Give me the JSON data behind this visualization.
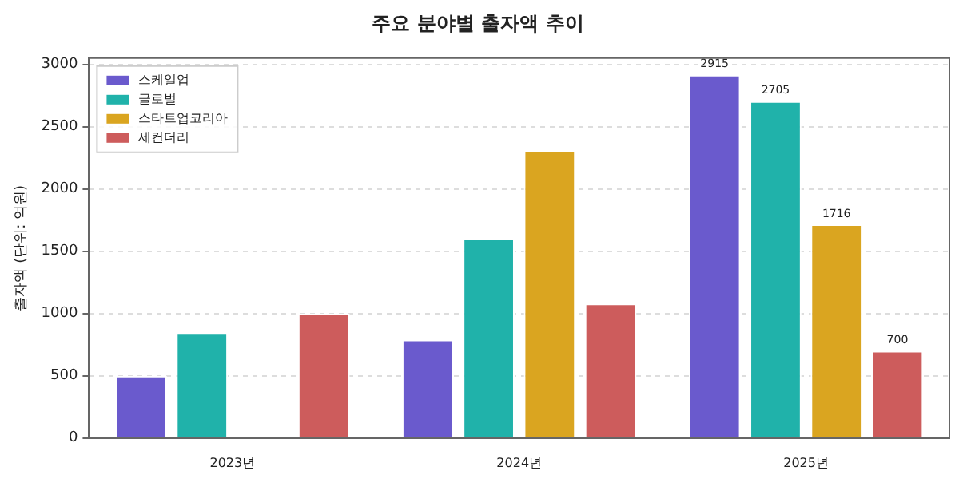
{
  "chart_data": {
    "type": "bar",
    "title": "주요 분야별 출자액 추이",
    "ylabel": "출자액 (단위: 억원)",
    "categories": [
      "2023년",
      "2024년",
      "2025년"
    ],
    "series": [
      {
        "name": "스케일업",
        "color": "#6a5acd",
        "values": [
          500,
          790,
          2915
        ],
        "value_labels": [
          null,
          null,
          "2915"
        ]
      },
      {
        "name": "글로벌",
        "color": "#20b2aa",
        "values": [
          850,
          1600,
          2705
        ],
        "value_labels": [
          null,
          null,
          "2705"
        ]
      },
      {
        "name": "스타트업코리아",
        "color": "#daa520",
        "values": [
          null,
          2310,
          1716
        ],
        "value_labels": [
          null,
          null,
          "1716"
        ]
      },
      {
        "name": "세컨더리",
        "color": "#cd5c5c",
        "values": [
          1000,
          1080,
          700
        ],
        "value_labels": [
          null,
          null,
          "700"
        ]
      }
    ],
    "ylim": [
      0,
      3050
    ],
    "yticks": [
      0,
      500,
      1000,
      1500,
      2000,
      2500,
      3000
    ],
    "grid": "y",
    "legend": "top left"
  }
}
